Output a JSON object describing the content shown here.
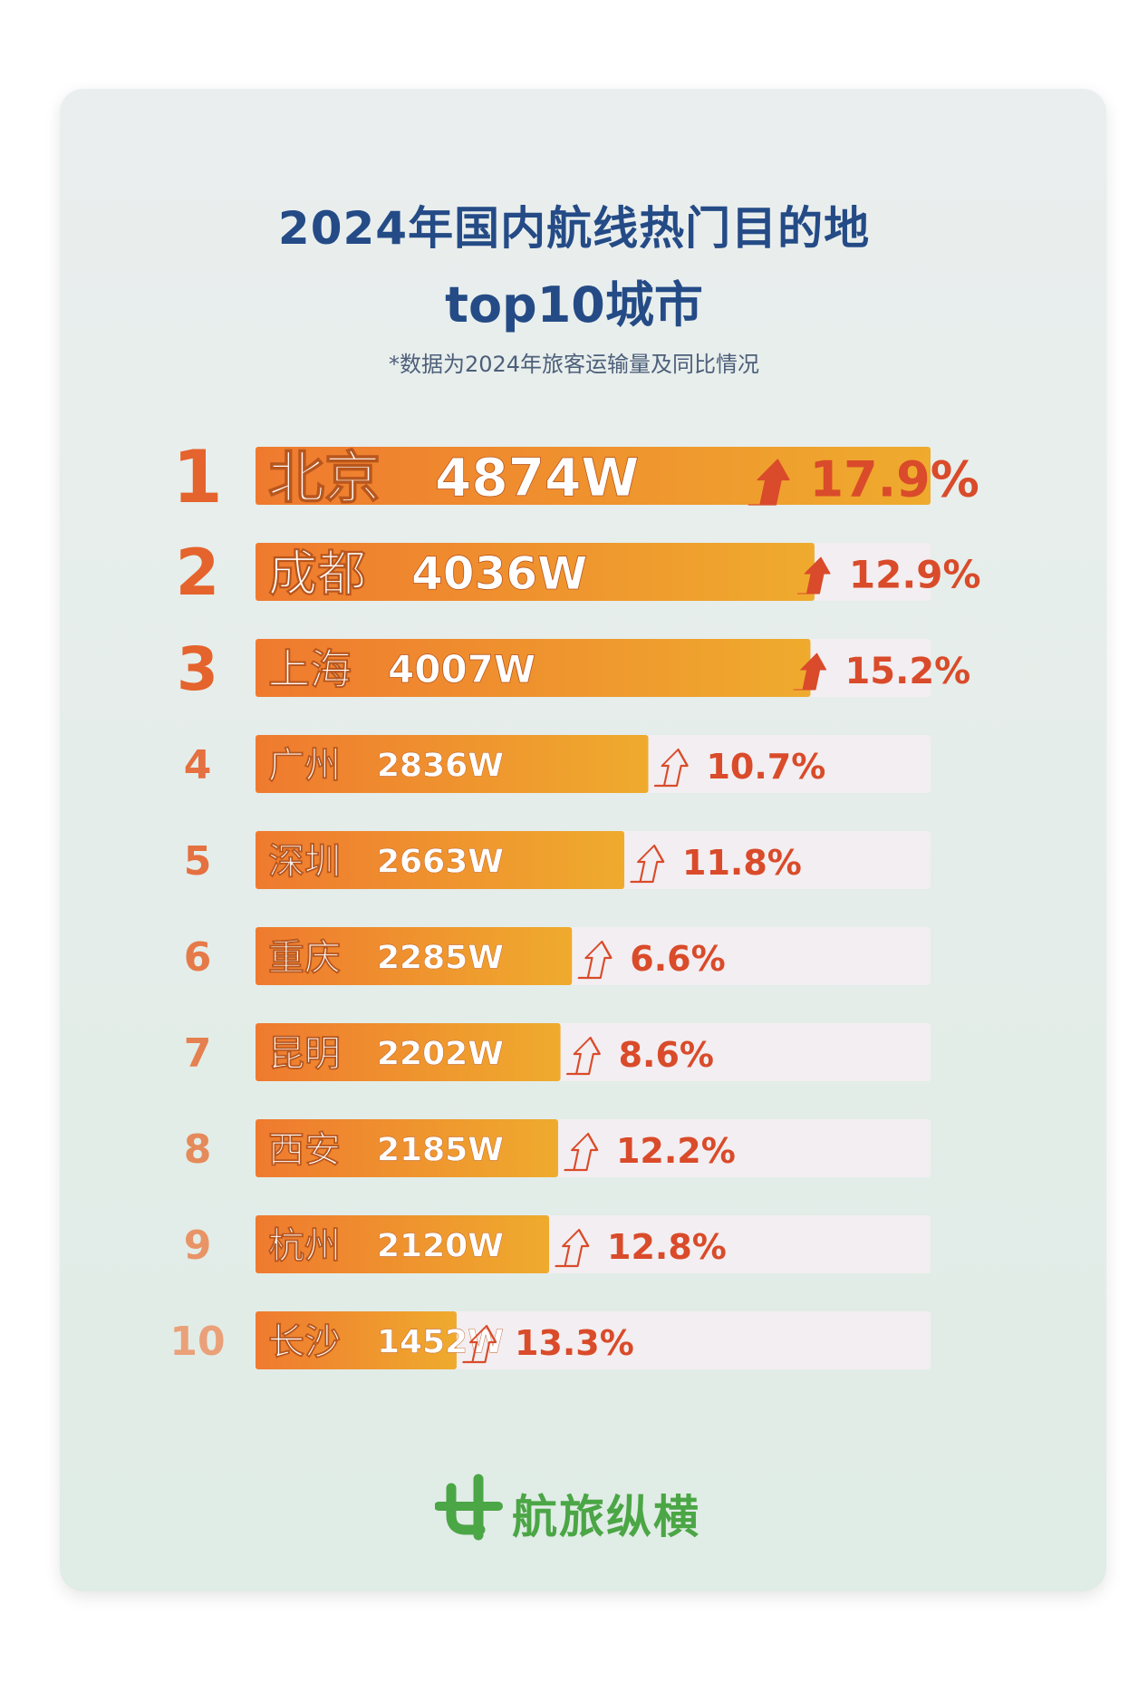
{
  "header": {
    "title_line1": "2024年国内航线热门目的地",
    "title_line2": "top10城市",
    "note": "*数据为2024年旅客运输量及同比情况"
  },
  "brand": {
    "name": "航旅纵横",
    "color": "#4ba645"
  },
  "colors": {
    "bar_start": "#ef7a2f",
    "bar_end": "#efab2e",
    "track": "#f3eef1",
    "rank": "#e5632c",
    "growth": "#d94b2a",
    "title": "#244b86"
  },
  "chart_data": {
    "type": "bar",
    "orientation": "horizontal",
    "title": "2024年国内航线热门目的地 top10城市",
    "unit": "W",
    "ranks": [
      "1",
      "2",
      "3",
      "4",
      "5",
      "6",
      "7",
      "8",
      "9",
      "10"
    ],
    "categories": [
      "北京",
      "成都",
      "上海",
      "广州",
      "深圳",
      "重庆",
      "昆明",
      "西安",
      "杭州",
      "长沙"
    ],
    "values": [
      4874,
      4036,
      4007,
      2836,
      2663,
      2285,
      2202,
      2185,
      2120,
      1452
    ],
    "value_labels": [
      "4874W",
      "4036W",
      "4007W",
      "2836W",
      "2663W",
      "2285W",
      "2202W",
      "2185W",
      "2120W",
      "1452W"
    ],
    "growth": [
      "17.9%",
      "12.9%",
      "15.2%",
      "10.7%",
      "11.8%",
      "6.6%",
      "8.6%",
      "12.2%",
      "12.8%",
      "13.3%"
    ],
    "xlim": [
      0,
      4874
    ]
  }
}
